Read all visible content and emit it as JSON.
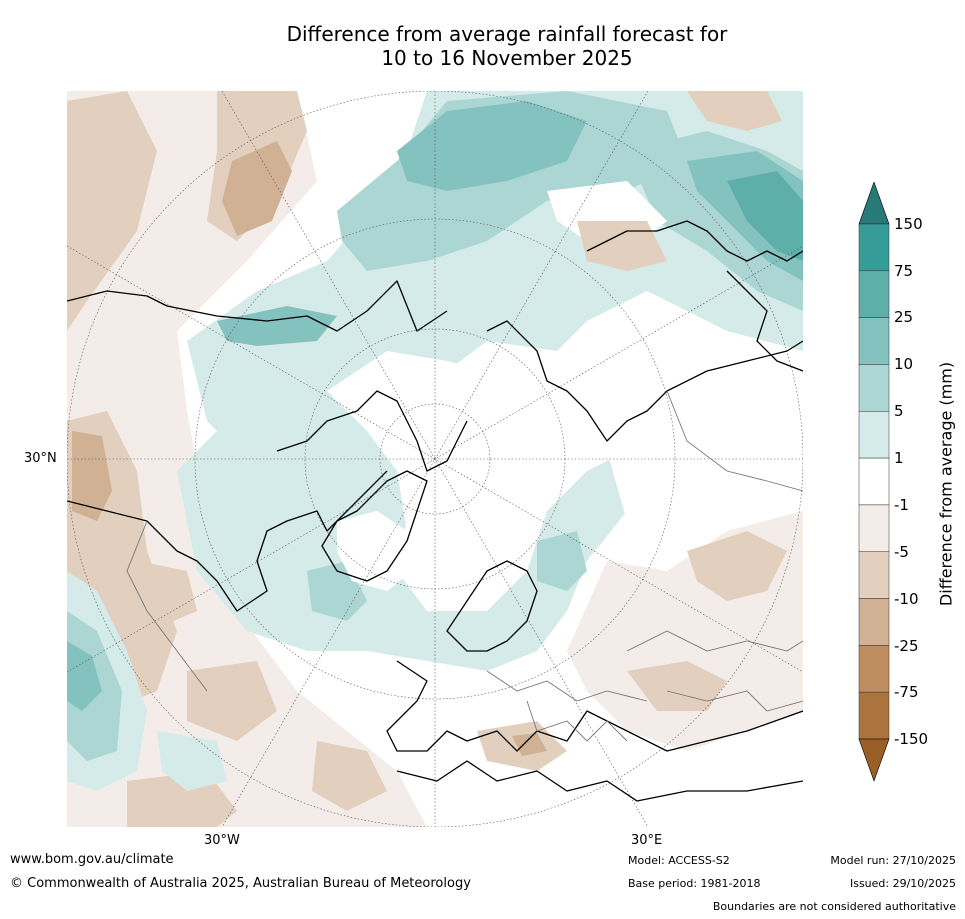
{
  "title_line1": "Difference from average rainfall forecast for",
  "title_line2": "10 to 16 November 2025",
  "map": {
    "lat_label": "30°N",
    "lon_labels": [
      "30°W",
      "30°E"
    ]
  },
  "colorbar": {
    "title": "Difference from average (mm)",
    "ticks": [
      "150",
      "75",
      "25",
      "10",
      "5",
      "1",
      "-1",
      "-5",
      "-10",
      "-25",
      "-75",
      "-150"
    ],
    "colors": {
      "above_150": "#287a78",
      "75_150": "#369c98",
      "25_75": "#5eaeaa",
      "10_25": "#84c2bf",
      "5_10": "#acd6d4",
      "1_5": "#d5ebe9",
      "neutral": "#ffffff",
      "m1_m5": "#f4ece8",
      "m5_m10": "#e2cfbd",
      "m10_m25": "#d0b194",
      "m25_m75": "#bd8c5f",
      "m75_m150": "#ab743f",
      "below_m150": "#9a5f27"
    }
  },
  "footer": {
    "url": "www.bom.gov.au/climate",
    "copyright": "© Commonwealth of Australia 2025, Australian Bureau of Meteorology",
    "model": "Model: ACCESS-S2",
    "base_period": "Base period: 1981-2018",
    "model_run": "Model run: 27/10/2025",
    "issued": "Issued: 29/10/2025",
    "disclaimer": "Boundaries are not considered authoritative"
  }
}
